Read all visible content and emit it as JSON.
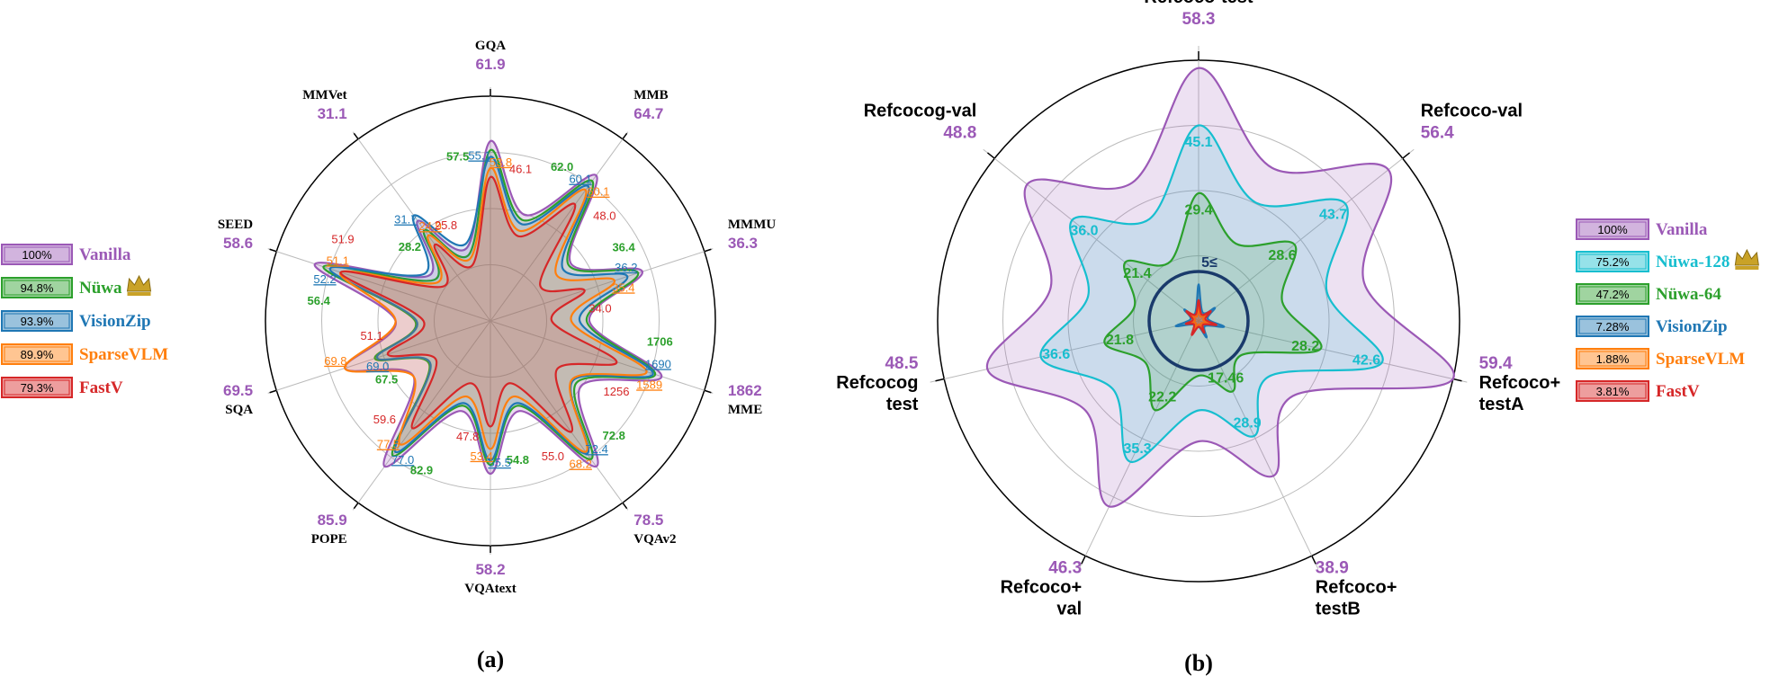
{
  "captions": {
    "a": "(a)",
    "b": "(b)"
  },
  "colors": {
    "vanilla": "#9B59B6",
    "nuwa": "#2CA02C",
    "visionzip": "#1F77B4",
    "sparsevlm": "#FF7F0E",
    "fastv": "#D62728",
    "nuwa128": "#17BECF",
    "nuwa64": "#2CA02C",
    "crown": "#C9A227",
    "axis_label": "#000000",
    "grid": "#bbbbbb"
  },
  "chart_data": [
    {
      "id": "a",
      "type": "radar",
      "scale": "per-axis, normalized to Vanilla",
      "axes": [
        "GQA",
        "MMB",
        "MMMU",
        "MME",
        "VQAv2",
        "VQAtext",
        "POPE",
        "SQA",
        "SEED",
        "MMVet"
      ],
      "axis_values": [
        "61.9",
        "64.7",
        "36.3",
        "1862",
        "78.5",
        "58.2",
        "85.9",
        "69.5",
        "58.6",
        "31.1"
      ],
      "legend": [
        {
          "key": "vanilla",
          "pct": "100%",
          "name": "Vanilla",
          "crown": false
        },
        {
          "key": "nuwa",
          "pct": "94.8%",
          "name": "Nüwa",
          "crown": true
        },
        {
          "key": "visionzip",
          "pct": "93.9%",
          "name": "VisionZip",
          "crown": false
        },
        {
          "key": "sparsevlm",
          "pct": "89.9%",
          "name": "SparseVLM",
          "crown": false
        },
        {
          "key": "fastv",
          "pct": "79.3%",
          "name": "FastV",
          "crown": false
        }
      ],
      "series": [
        {
          "key": "vanilla",
          "fractions": [
            0.8,
            0.8,
            0.71,
            0.8,
            0.8,
            0.68,
            0.8,
            0.68,
            0.82,
            0.55
          ]
        },
        {
          "key": "nuwa",
          "fractions": [
            0.76,
            0.77,
            0.69,
            0.77,
            0.76,
            0.64,
            0.74,
            0.54,
            0.78,
            0.5
          ]
        },
        {
          "key": "visionzip",
          "fractions": [
            0.73,
            0.74,
            0.64,
            0.76,
            0.73,
            0.62,
            0.72,
            0.53,
            0.75,
            0.58
          ]
        },
        {
          "key": "sparsevlm",
          "fractions": [
            0.68,
            0.72,
            0.58,
            0.73,
            0.72,
            0.57,
            0.68,
            0.68,
            0.7,
            0.47
          ]
        },
        {
          "key": "fastv",
          "fractions": [
            0.64,
            0.64,
            0.44,
            0.59,
            0.61,
            0.47,
            0.59,
            0.48,
            0.7,
            0.42
          ]
        }
      ],
      "value_labels": [
        [
          "Vanilla",
          "Nüwa",
          "VisionZip",
          "SparseVLM",
          "FastV"
        ],
        {
          "axis": "GQA",
          "nuwa": "57.5",
          "visionzip": "55.1",
          "sparsevlm": "53.8",
          "fastv": "46.1"
        },
        {
          "axis": "MMB",
          "nuwa": "62.0",
          "visionzip": "60.1",
          "sparsevlm": "60.1",
          "fastv": "48.0"
        },
        {
          "axis": "MMMU",
          "nuwa": "36.4",
          "visionzip": "36.2",
          "sparsevlm": "35.4",
          "fastv": "34.0"
        },
        {
          "axis": "MME",
          "nuwa": "1706",
          "visionzip": "1690",
          "sparsevlm": "1589",
          "fastv": "1256"
        },
        {
          "axis": "VQAv2",
          "nuwa": "72.8",
          "visionzip": "72.4",
          "sparsevlm": "68.2",
          "fastv": "55.0"
        },
        {
          "axis": "VQAtext",
          "nuwa": "54.8",
          "visionzip": "55.5",
          "sparsevlm": "53.4",
          "fastv": "47.8"
        },
        {
          "axis": "POPE",
          "nuwa": "82.9",
          "visionzip": "77.0",
          "sparsevlm": "77.5",
          "fastv": "59.6"
        },
        {
          "axis": "SQA",
          "nuwa": "67.5",
          "visionzip": "69.0",
          "sparsevlm": "69.8",
          "fastv": "51.1"
        },
        {
          "axis": "SEED",
          "nuwa": "56.4",
          "visionzip": "52.2",
          "sparsevlm": "51.1",
          "fastv": "51.9"
        },
        {
          "axis": "MMVet",
          "nuwa": "28.2",
          "visionzip": "31.7",
          "sparsevlm": "24.9",
          "fastv": "25.8"
        }
      ]
    },
    {
      "id": "b",
      "type": "radar",
      "scale": "per-axis, normalized to Vanilla",
      "axes": [
        "Refcoco-test",
        "Refcoco-val",
        "Refcoco+ testA",
        "Refcoco+ testB",
        "Refcoco+ val",
        "Refcocog test",
        "Refcocog-val"
      ],
      "axis_values": [
        "58.3",
        "56.4",
        "59.4",
        "38.9",
        "46.3",
        "48.5",
        "48.8"
      ],
      "center_label": "5≤",
      "legend": [
        {
          "key": "vanilla",
          "pct": "100%",
          "name": "Vanilla",
          "crown": false
        },
        {
          "key": "nuwa128",
          "pct": "75.2%",
          "name": "Nüwa-128",
          "crown": true
        },
        {
          "key": "nuwa64",
          "pct": "47.2%",
          "name": "Nüwa-64",
          "crown": false
        },
        {
          "key": "visionzip",
          "pct": "7.28%",
          "name": "VisionZip",
          "crown": false
        },
        {
          "key": "sparsevlm",
          "pct": "1.88%",
          "name": "SparseVLM",
          "crown": false
        },
        {
          "key": "fastv",
          "pct": "3.81%",
          "name": "FastV",
          "crown": false
        }
      ],
      "series": [
        {
          "key": "vanilla",
          "fractions": [
            0.97,
            0.93,
            1.0,
            0.66,
            0.79,
            0.83,
            0.84
          ]
        },
        {
          "key": "nuwa128",
          "fractions": [
            0.75,
            0.72,
            0.72,
            0.49,
            0.6,
            0.62,
            0.62
          ]
        },
        {
          "key": "nuwa64",
          "fractions": [
            0.49,
            0.47,
            0.48,
            0.3,
            0.38,
            0.37,
            0.36
          ]
        },
        {
          "key": "visionzip",
          "fractions": [
            0.14,
            0.08,
            0.1,
            0.07,
            0.05,
            0.09,
            0.07
          ]
        },
        {
          "key": "sparsevlm",
          "fractions": [
            0.05,
            0.04,
            0.04,
            0.03,
            0.04,
            0.03,
            0.04
          ]
        },
        {
          "key": "fastv",
          "fractions": [
            0.08,
            0.06,
            0.07,
            0.05,
            0.06,
            0.05,
            0.06
          ]
        }
      ],
      "value_labels": [
        {
          "axis": "Refcoco-test",
          "nuwa128": "45.1",
          "nuwa64": "29.4"
        },
        {
          "axis": "Refcoco-val",
          "nuwa128": "43.7",
          "nuwa64": "28.6"
        },
        {
          "axis": "Refcoco+ testA",
          "nuwa128": "42.6",
          "nuwa64": "28.2"
        },
        {
          "axis": "Refcoco+ testB",
          "nuwa128": "28.9",
          "nuwa64": "17.46"
        },
        {
          "axis": "Refcoco+ val",
          "nuwa128": "35.3",
          "nuwa64": "22.2"
        },
        {
          "axis": "Refcocog test",
          "nuwa128": "36.6",
          "nuwa64": "21.8"
        },
        {
          "axis": "Refcocog-val",
          "nuwa128": "36.0",
          "nuwa64": "21.4"
        }
      ]
    }
  ]
}
